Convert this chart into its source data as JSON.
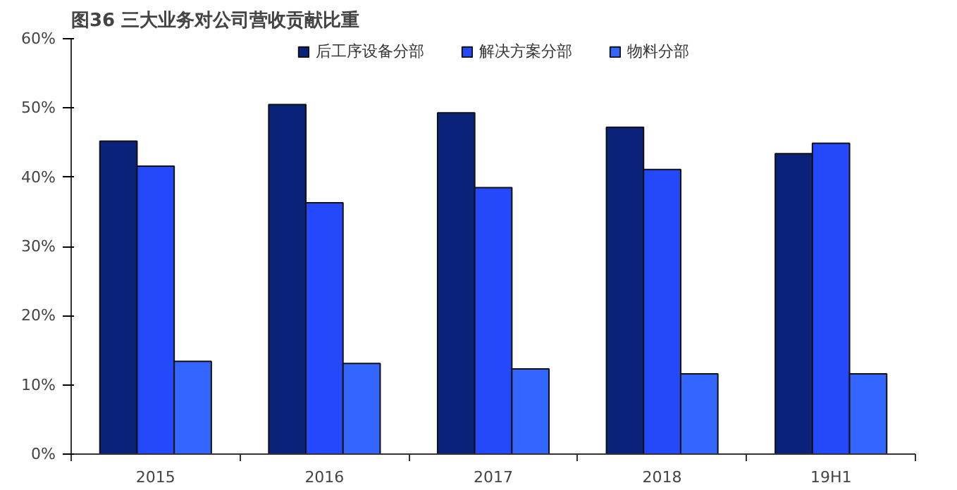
{
  "chart_data": {
    "type": "bar",
    "title": "图36  三大业务对公司营收贡献比重",
    "categories": [
      "2015",
      "2016",
      "2017",
      "2018",
      "19H1"
    ],
    "series": [
      {
        "name": "后工序设备分部",
        "color": "#0a2279",
        "values": [
          45.2,
          50.5,
          49.3,
          47.2,
          43.4
        ]
      },
      {
        "name": "解决方案分部",
        "color": "#2349fa",
        "values": [
          41.6,
          36.3,
          38.5,
          41.1,
          44.9
        ]
      },
      {
        "name": "物料分部",
        "color": "#3366ff",
        "values": [
          13.4,
          13.1,
          12.3,
          11.6,
          11.6
        ]
      }
    ],
    "ylim": [
      0,
      60
    ],
    "yticks": [
      {
        "value": 0,
        "label": "0%"
      },
      {
        "value": 10,
        "label": "10%"
      },
      {
        "value": 20,
        "label": "20%"
      },
      {
        "value": 30,
        "label": "30%"
      },
      {
        "value": 40,
        "label": "40%"
      },
      {
        "value": 50,
        "label": "50%"
      },
      {
        "value": 60,
        "label": "60%"
      }
    ],
    "grid": false,
    "legend": "top"
  }
}
